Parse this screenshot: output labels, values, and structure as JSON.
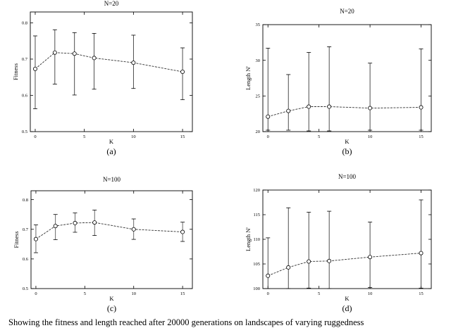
{
  "caption": "Showing the fitness and length reached after 20000 generations on landscapes of varying ruggedness",
  "chart_data": [
    {
      "type": "line",
      "panel": "(a)",
      "title": "N=20",
      "xlabel": "K",
      "ylabel": "Fitness",
      "xlim": [
        -0.5,
        16
      ],
      "ylim": [
        0.5,
        0.83
      ],
      "xticks": [
        "0",
        "5",
        "10",
        "15"
      ],
      "yticks": [
        "0.5",
        "0.6",
        "0.7",
        "0.8"
      ],
      "series": [
        {
          "x": [
            0,
            2,
            4,
            6,
            10,
            15
          ],
          "y": [
            0.673,
            0.718,
            0.715,
            0.703,
            0.69,
            0.665
          ],
          "err_low": [
            0.563,
            0.631,
            0.601,
            0.617,
            0.619,
            0.588
          ],
          "err_high": [
            0.764,
            0.781,
            0.773,
            0.771,
            0.766,
            0.731
          ]
        }
      ]
    },
    {
      "type": "line",
      "panel": "(b)",
      "title": "N=20",
      "xlabel": "K",
      "ylabel": "Length N'",
      "xlim": [
        -0.5,
        16
      ],
      "ylim": [
        20,
        35
      ],
      "xticks": [
        "0",
        "5",
        "10",
        "15"
      ],
      "yticks": [
        "20",
        "25",
        "30",
        "35"
      ],
      "series": [
        {
          "x": [
            0,
            2,
            4,
            6,
            10,
            15
          ],
          "y": [
            22.1,
            22.9,
            23.5,
            23.5,
            23.3,
            23.4
          ],
          "err_low": [
            20.2,
            20.2,
            20.1,
            20.1,
            20.2,
            20.2
          ],
          "err_high": [
            31.7,
            28.0,
            31.1,
            31.9,
            29.6,
            31.6
          ]
        }
      ]
    },
    {
      "type": "line",
      "panel": "(c)",
      "title": "N=100",
      "xlabel": "K",
      "ylabel": "Fitness",
      "xlim": [
        -0.5,
        16
      ],
      "ylim": [
        0.5,
        0.83
      ],
      "xticks": [
        "0",
        "5",
        "10",
        "15"
      ],
      "yticks": [
        "0.5",
        "0.6",
        "0.7",
        "0.8"
      ],
      "series": [
        {
          "x": [
            0,
            2,
            4,
            6,
            10,
            15
          ],
          "y": [
            0.667,
            0.711,
            0.721,
            0.723,
            0.7,
            0.691
          ],
          "err_low": [
            0.621,
            0.665,
            0.69,
            0.679,
            0.666,
            0.659
          ],
          "err_high": [
            0.715,
            0.75,
            0.755,
            0.765,
            0.735,
            0.724
          ]
        }
      ]
    },
    {
      "type": "line",
      "panel": "(d)",
      "title": "N=100",
      "xlabel": "K",
      "ylabel": "Length N'",
      "xlim": [
        -0.5,
        16
      ],
      "ylim": [
        100,
        120
      ],
      "xticks": [
        "0",
        "5",
        "10",
        "15"
      ],
      "yticks": [
        "100",
        "105",
        "110",
        "115",
        "120"
      ],
      "series": [
        {
          "x": [
            0,
            2,
            4,
            6,
            10,
            15
          ],
          "y": [
            102.6,
            104.3,
            105.5,
            105.6,
            106.4,
            107.2
          ],
          "err_low": [
            100.0,
            100.0,
            100.1,
            100.0,
            100.2,
            100.1
          ],
          "err_high": [
            110.3,
            116.4,
            115.5,
            115.7,
            113.5,
            118.0
          ]
        }
      ]
    }
  ]
}
